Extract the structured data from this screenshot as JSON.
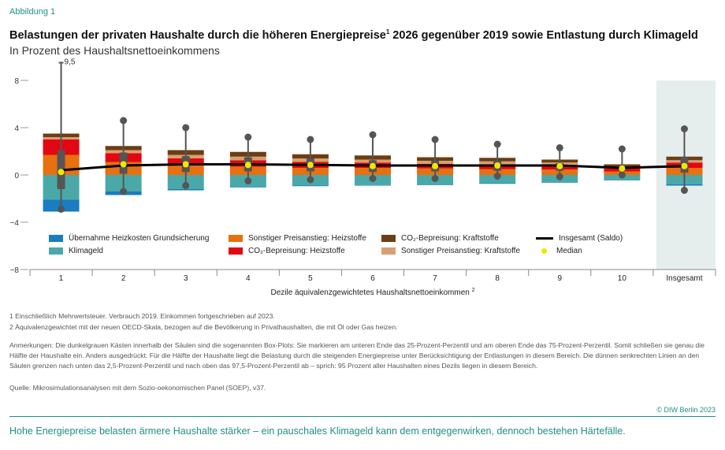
{
  "figure_label": "Abbildung 1",
  "title": "Belastungen der privaten Haushalte durch die höheren Energiepreise",
  "title_sup": "1",
  "title_rest": " 2026 gegenüber 2019 sowie Entlastung durch Klimageld",
  "subtitle": "In Prozent des Haushaltsnettoeinkommens",
  "colors": {
    "grundsicherung": "#1a7cc1",
    "klimageld": "#4aa9a8",
    "preis_heiz": "#e8700f",
    "co2_heiz": "#e30613",
    "co2_kraft": "#6b3e14",
    "preis_kraft": "#d8a070",
    "saldo": "#000000",
    "median": "#f2e600",
    "box": "#555555",
    "highlight_bg": "#e6eeed"
  },
  "chart_data": {
    "type": "bar",
    "stacked": true,
    "categories": [
      "1",
      "2",
      "3",
      "4",
      "5",
      "6",
      "7",
      "8",
      "9",
      "10",
      "Insgesamt"
    ],
    "xlabel": "Dezile äquivalenzgewichtetes Haushaltsnettoeinkommen",
    "xlabel_sup": "2",
    "ylabel": "",
    "ylim": [
      -8,
      8
    ],
    "yticks": [
      "8",
      "4",
      "0",
      "−4",
      "−8"
    ],
    "ytick_values": [
      8,
      4,
      0,
      -4,
      -8
    ],
    "annotation": "9,5",
    "series": [
      {
        "name": "Übernahme Heizkosten Grundsicherung",
        "key": "grundsicherung",
        "values": [
          -1.0,
          -0.3,
          -0.1,
          -0.05,
          -0.05,
          -0.05,
          -0.05,
          -0.05,
          -0.05,
          -0.05,
          -0.1
        ]
      },
      {
        "name": "Klimageld",
        "key": "klimageld",
        "values": [
          -2.1,
          -1.4,
          -1.2,
          -1.0,
          -0.9,
          -0.85,
          -0.8,
          -0.7,
          -0.6,
          -0.4,
          -0.8
        ]
      },
      {
        "name": "Sonstiger Preisanstieg: Heizstoffe",
        "key": "preis_heiz",
        "values": [
          1.7,
          1.1,
          0.8,
          0.7,
          0.6,
          0.6,
          0.55,
          0.5,
          0.45,
          0.3,
          0.6
        ]
      },
      {
        "name": "CO₂-Bepreisung: Heizstoffe",
        "key": "co2_heiz",
        "values": [
          1.3,
          0.75,
          0.6,
          0.55,
          0.5,
          0.45,
          0.4,
          0.4,
          0.35,
          0.25,
          0.45
        ]
      },
      {
        "name": "Sonstiger Preisanstieg: Kraftstoffe",
        "key": "preis_kraft",
        "values": [
          0.2,
          0.25,
          0.3,
          0.3,
          0.3,
          0.25,
          0.25,
          0.25,
          0.25,
          0.15,
          0.2
        ]
      },
      {
        "name": "CO₂-Bepreisung: Kraftstoffe",
        "key": "co2_kraft",
        "values": [
          0.3,
          0.35,
          0.4,
          0.4,
          0.35,
          0.35,
          0.3,
          0.3,
          0.25,
          0.2,
          0.3
        ]
      }
    ],
    "saldo": {
      "name": "Insgesamt (Saldo)",
      "values": [
        0.4,
        0.8,
        0.9,
        0.9,
        0.85,
        0.8,
        0.8,
        0.8,
        0.8,
        0.6,
        0.75
      ]
    },
    "boxplots": [
      {
        "p2_5": -2.9,
        "p25": -1.2,
        "median": 0.25,
        "p75": 2.1,
        "p97_5": 9.5
      },
      {
        "p2_5": -1.4,
        "p25": 0.1,
        "median": 0.9,
        "p75": 1.9,
        "p97_5": 4.6
      },
      {
        "p2_5": -0.9,
        "p25": 0.25,
        "median": 0.9,
        "p75": 1.6,
        "p97_5": 4.0
      },
      {
        "p2_5": -0.5,
        "p25": 0.3,
        "median": 0.85,
        "p75": 1.5,
        "p97_5": 3.2
      },
      {
        "p2_5": -0.4,
        "p25": 0.3,
        "median": 0.85,
        "p75": 1.4,
        "p97_5": 3.0
      },
      {
        "p2_5": -0.3,
        "p25": 0.25,
        "median": 0.75,
        "p75": 1.25,
        "p97_5": 3.4
      },
      {
        "p2_5": -0.3,
        "p25": 0.3,
        "median": 0.75,
        "p75": 1.2,
        "p97_5": 3.0
      },
      {
        "p2_5": -0.1,
        "p25": 0.35,
        "median": 0.8,
        "p75": 1.2,
        "p97_5": 2.6
      },
      {
        "p2_5": -0.15,
        "p25": 0.35,
        "median": 0.75,
        "p75": 1.0,
        "p97_5": 2.3
      },
      {
        "p2_5": 0.0,
        "p25": 0.3,
        "median": 0.55,
        "p75": 0.8,
        "p97_5": 2.2
      },
      {
        "p2_5": -1.3,
        "p25": 0.2,
        "median": 0.75,
        "p75": 1.5,
        "p97_5": 3.9
      }
    ]
  },
  "legend": {
    "grundsicherung": "Übernahme Heizkosten Grundsicherung",
    "klimageld": "Klimageld",
    "preis_heiz": "Sonstiger Preisanstieg: Heizstoffe",
    "co2_heiz": "CO₂-Bepreisung: Heizstoffe",
    "co2_kraft": "CO₂-Bepreisung: Kraftstoffe",
    "preis_kraft": "Sonstiger Preisanstieg: Kraftstoffe",
    "saldo": "Insgesamt (Saldo)",
    "median": "Median"
  },
  "notes": {
    "fn1": "1  Einschließlich Mehrwertsteuer. Verbrauch 2019. Einkommen fortgeschrieben auf 2023.",
    "fn2": "2  Äquivalenzgewichtet mit der neuen OECD-Skala, bezogen auf die Bevölkerung in Privathaushalten, die mit Öl oder Gas heizen.",
    "anmerkungen": "Anmerkungen: Die dunkelgrauen Kästen innerhalb der Säulen sind die sogenannten Box-Plots: Sie markieren am unteren Ende das 25-Prozent-Perzentil und am oberen Ende das 75-Prozent-Perzentil. Somit schließen sie genau die Hälfte der Haushalte ein. Anders ausgedrückt: Für die Hälfte der Haushalte liegt die Belastung durch die steigenden Energiepreise unter Berücksichtigung der Entlastungen in diesem Bereich. Die dünnen senkrechten Linien an den Säulen grenzen nach unten das 2,5-Prozent-Perzentil und nach oben das 97,5-Prozent-Perzentil ab – sprich: 95 Prozent aller Haushalten eines Dezils liegen in diesem Bereich.",
    "quelle": "Quelle: Mikrosimulationsanalysen mit dem Sozio-oekonomischen Panel (SOEP), v37."
  },
  "copyright": "© DIW Berlin 2023",
  "footer": "Hohe Energiepreise belasten ärmere Haushalte stärker – ein pauschales Klimageld kann dem entgegenwirken, dennoch bestehen Härtefälle."
}
